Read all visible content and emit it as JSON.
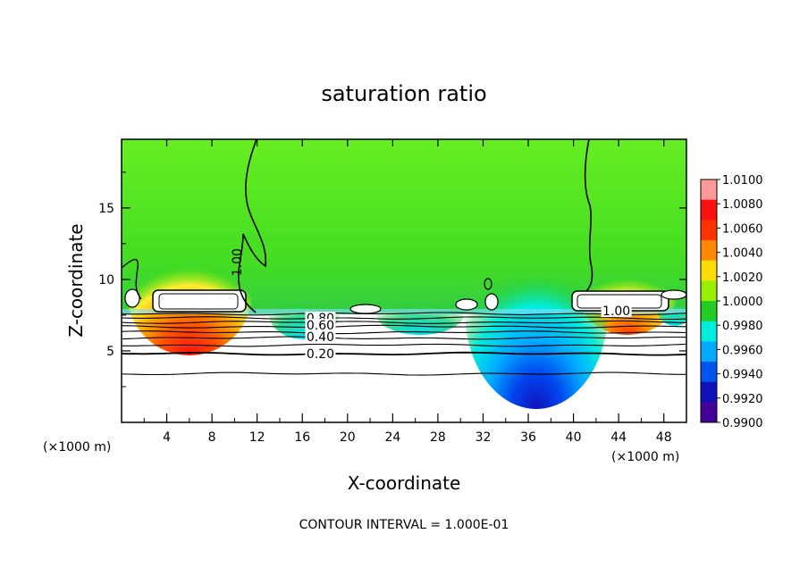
{
  "chart_data": {
    "type": "heatmap",
    "title": "saturation ratio",
    "xlabel": "X-coordinate",
    "ylabel": "Z-coordinate",
    "x_unit": "(×1000 m)",
    "x_unit_right": "(×1000 m)",
    "xlim": [
      0,
      50
    ],
    "ylim": [
      0,
      19.8
    ],
    "x_ticks": [
      4,
      8,
      12,
      16,
      20,
      24,
      28,
      32,
      36,
      40,
      44,
      48
    ],
    "y_ticks": [
      5,
      10,
      15
    ],
    "footer": "CONTOUR INTERVAL = 1.000E-01",
    "colorbar": {
      "labels": [
        "1.0100",
        "1.0080",
        "1.0060",
        "1.0040",
        "1.0020",
        "1.0000",
        "0.9980",
        "0.9960",
        "0.9940",
        "0.9920",
        "0.9900"
      ],
      "colors": [
        "#ff9a9a",
        "#ff1010",
        "#ff3300",
        "#ff8800",
        "#ffdd00",
        "#99ee00",
        "#22cc22",
        "#00eedd",
        "#00aaff",
        "#0055ee",
        "#1111bb",
        "#440099"
      ]
    },
    "contour_labels": [
      {
        "text": "1.00",
        "x": 10.2,
        "z": 11.2
      },
      {
        "text": "1.00",
        "x": 43.8,
        "z": 7.8
      },
      {
        "text": "0.80",
        "x": 17.6,
        "z": 7.3
      },
      {
        "text": "0.60",
        "x": 17.6,
        "z": 6.8
      },
      {
        "text": "0.40",
        "x": 17.6,
        "z": 6.0
      },
      {
        "text": "0.20",
        "x": 17.6,
        "z": 4.8
      }
    ],
    "contour_levels_z": [
      0.2,
      0.4,
      0.6,
      0.8
    ]
  }
}
